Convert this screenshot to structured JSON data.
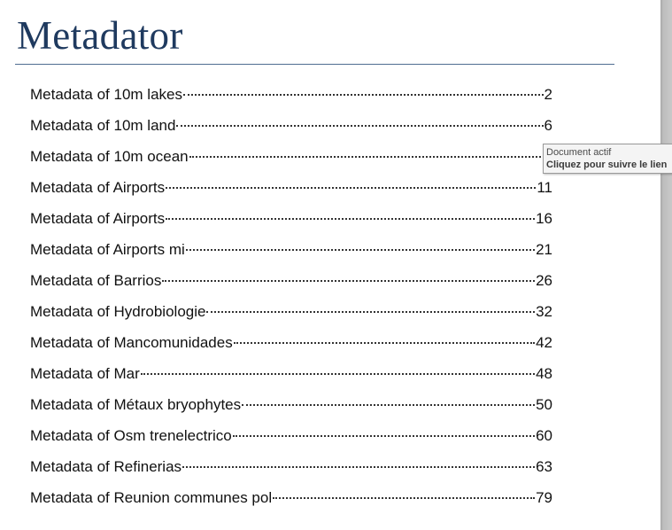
{
  "document": {
    "title": "Metadator",
    "toc": [
      {
        "title": "Metadata of 10m lakes",
        "page": "2"
      },
      {
        "title": "Metadata of 10m land",
        "page": "6"
      },
      {
        "title": "Metadata of 10m ocean ",
        "page": ""
      },
      {
        "title": "Metadata of Airports",
        "page": "11"
      },
      {
        "title": "Metadata of Airports",
        "page": "16"
      },
      {
        "title": "Metadata of Airports mi ",
        "page": "21"
      },
      {
        "title": "Metadata of Barrios ",
        "page": "26"
      },
      {
        "title": "Metadata of Hydrobiologie",
        "page": "32"
      },
      {
        "title": "Metadata of Mancomunidades ",
        "page": "42"
      },
      {
        "title": "Metadata of Mar ",
        "page": "48"
      },
      {
        "title": "Metadata of Métaux bryophytes",
        "page": "50"
      },
      {
        "title": "Metadata of Osm trenelectrico",
        "page": "60"
      },
      {
        "title": "Metadata of Refinerias",
        "page": "63"
      },
      {
        "title": "Metadata of Reunion communes pol",
        "page": "79"
      }
    ]
  },
  "tooltip": {
    "line1": "Document actif",
    "line2": "Cliquez pour suivre le lien"
  }
}
